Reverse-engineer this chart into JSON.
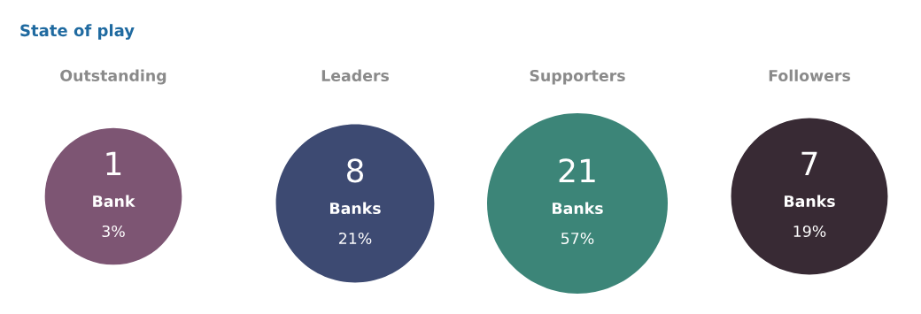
{
  "chart_data": {
    "type": "other",
    "title": "State of play",
    "data_labels": true,
    "categories": [
      "Outstanding",
      "Leaders",
      "Supporters",
      "Followers"
    ],
    "series": [
      {
        "values": [
          1,
          8,
          21,
          7
        ],
        "colors": [
          "#7d5573",
          "#3d4a72",
          "#3c8578",
          "#382a34"
        ]
      },
      {
        "color": "#ffffff",
        "values": [
          3,
          21,
          57,
          19
        ],
        "value_labels": [
          "3%",
          "21%",
          "57%",
          "19%"
        ]
      }
    ],
    "annotations": [
      "Bank",
      "Banks",
      "Banks",
      "Banks"
    ]
  }
}
